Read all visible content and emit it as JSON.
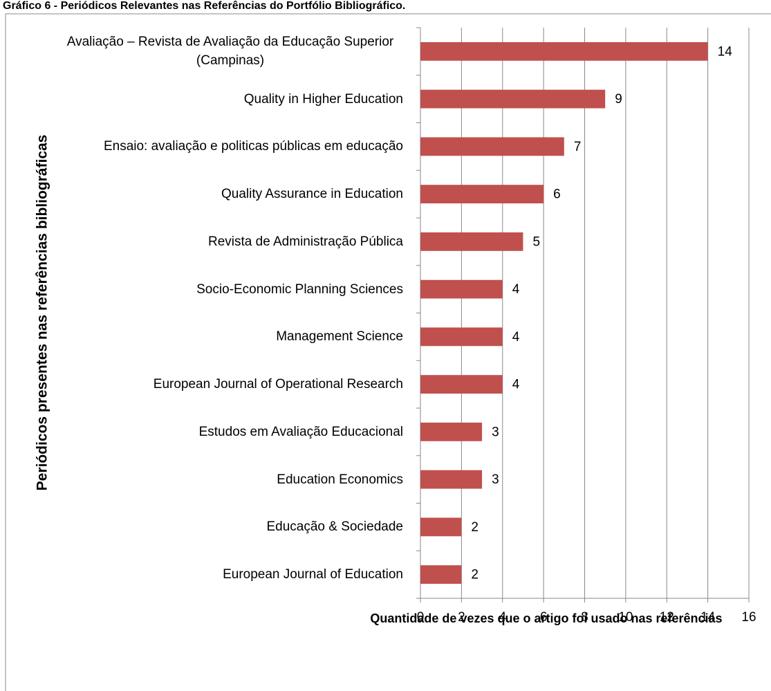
{
  "chart_data": {
    "type": "bar",
    "orientation": "horizontal",
    "title": "Gráfico 6 - Periódicos Relevantes nas Referências do Portfólio Bibliográfico.",
    "x_label": "Quantidade de vezes que o artigo foi usado nas referências",
    "y_label": "Periódicos presentes nas referências bibliográficas",
    "categories": [
      "Avaliação – Revista de Avaliação da Educação Superior (Campinas)",
      "Quality in Higher Education",
      "Ensaio: avaliação e politicas públicas em educação",
      "Quality Assurance in Education",
      "Revista de Administração Pública",
      "Socio-Economic Planning Sciences",
      "Management Science",
      "European Journal of Operational Research",
      "Estudos em Avaliação Educacional",
      "Education Economics",
      "Educação & Sociedade",
      "European Journal of Education"
    ],
    "values": [
      14,
      9,
      7,
      6,
      5,
      4,
      4,
      4,
      3,
      3,
      2,
      2
    ],
    "color": "#c0504d",
    "xlim": [
      0,
      16
    ],
    "xticks": [
      0,
      2,
      4,
      6,
      8,
      10,
      12,
      14,
      16
    ],
    "grid": true
  }
}
